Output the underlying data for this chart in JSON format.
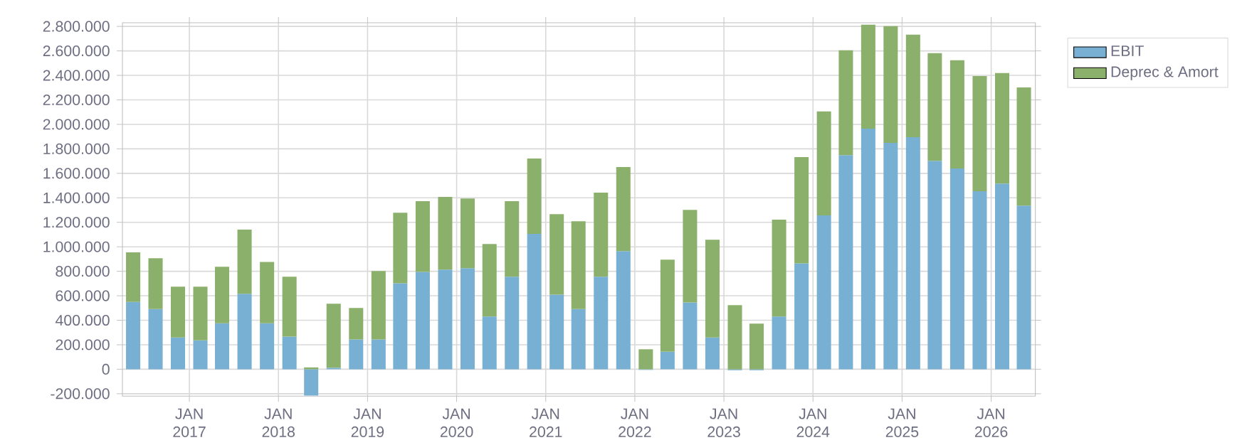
{
  "chart_data": {
    "type": "bar",
    "stacked": true,
    "x": [
      "2016-05-15",
      "2016-08-15",
      "2016-11-15",
      "2017-02-15",
      "2017-05-15",
      "2017-08-15",
      "2017-11-15",
      "2018-02-15",
      "2018-05-15",
      "2018-08-15",
      "2018-11-15",
      "2019-02-15",
      "2019-05-15",
      "2019-08-15",
      "2019-11-15",
      "2020-02-15",
      "2020-05-15",
      "2020-08-15",
      "2020-11-15",
      "2021-02-15",
      "2021-05-15",
      "2021-08-15",
      "2021-11-15",
      "2022-02-15",
      "2022-05-15",
      "2022-08-15",
      "2022-11-15",
      "2023-02-15",
      "2023-05-15",
      "2023-08-15",
      "2023-11-15",
      "2024-02-15",
      "2024-05-15",
      "2024-08-15",
      "2024-11-15",
      "2025-02-15",
      "2025-05-15",
      "2025-08-15",
      "2025-11-15",
      "2026-02-15",
      "2026-05-15"
    ],
    "series": [
      {
        "name": "EBIT",
        "color": "#78b0d3",
        "values": [
          550000,
          492000,
          260000,
          236000,
          376000,
          616000,
          376000,
          267000,
          -215000,
          12000,
          244000,
          244000,
          702000,
          795000,
          814000,
          826000,
          430000,
          756000,
          1105000,
          609000,
          492000,
          756000,
          965000,
          -5000,
          143000,
          546000,
          260000,
          -8000,
          -8000,
          430000,
          864000,
          1256000,
          1748000,
          1965000,
          1849000,
          1895000,
          1702000,
          1640000,
          1454000,
          1516000,
          1337000
        ]
      },
      {
        "name": "Deprec & Amort",
        "color": "#8bb06b",
        "values": [
          405000,
          415000,
          414000,
          438000,
          461000,
          524000,
          500000,
          489000,
          15000,
          523000,
          256000,
          558000,
          577000,
          577000,
          593000,
          569000,
          593000,
          616000,
          616000,
          658000,
          717000,
          686000,
          686000,
          163000,
          752000,
          756000,
          798000,
          523000,
          372000,
          791000,
          869000,
          849000,
          857000,
          849000,
          953000,
          838000,
          879000,
          883000,
          941000,
          903000,
          965000
        ]
      }
    ],
    "xlim": [
      "2016-04-01",
      "2026-07-01"
    ],
    "xticks": [
      {
        "value": "2017-01",
        "label": "JAN 2017"
      },
      {
        "value": "2018-01",
        "label": "JAN 2018"
      },
      {
        "value": "2019-01",
        "label": "JAN 2019"
      },
      {
        "value": "2020-01",
        "label": "JAN 2020"
      },
      {
        "value": "2021-01",
        "label": "JAN 2021"
      },
      {
        "value": "2022-01",
        "label": "JAN 2022"
      },
      {
        "value": "2023-01",
        "label": "JAN 2023"
      },
      {
        "value": "2024-01",
        "label": "JAN 2024"
      },
      {
        "value": "2025-01",
        "label": "JAN 2025"
      },
      {
        "value": "2026-01",
        "label": "JAN 2026"
      }
    ],
    "ylim": [
      -220000,
      2830000
    ],
    "yticks": [
      {
        "value": -200000,
        "label": "-200.000"
      },
      {
        "value": 0,
        "label": "0"
      },
      {
        "value": 200000,
        "label": "200.000"
      },
      {
        "value": 400000,
        "label": "400.000"
      },
      {
        "value": 600000,
        "label": "600.000"
      },
      {
        "value": 800000,
        "label": "800.000"
      },
      {
        "value": 1000000,
        "label": "1.000.000"
      },
      {
        "value": 1200000,
        "label": "1.200.000"
      },
      {
        "value": 1400000,
        "label": "1.400.000"
      },
      {
        "value": 1600000,
        "label": "1.600.000"
      },
      {
        "value": 1800000,
        "label": "1.800.000"
      },
      {
        "value": 2000000,
        "label": "2.000.000"
      },
      {
        "value": 2200000,
        "label": "2.200.000"
      },
      {
        "value": 2400000,
        "label": "2.400.000"
      },
      {
        "value": 2600000,
        "label": "2.600.000"
      },
      {
        "value": 2800000,
        "label": "2.800.000"
      }
    ],
    "grid": true,
    "legend": "right"
  }
}
